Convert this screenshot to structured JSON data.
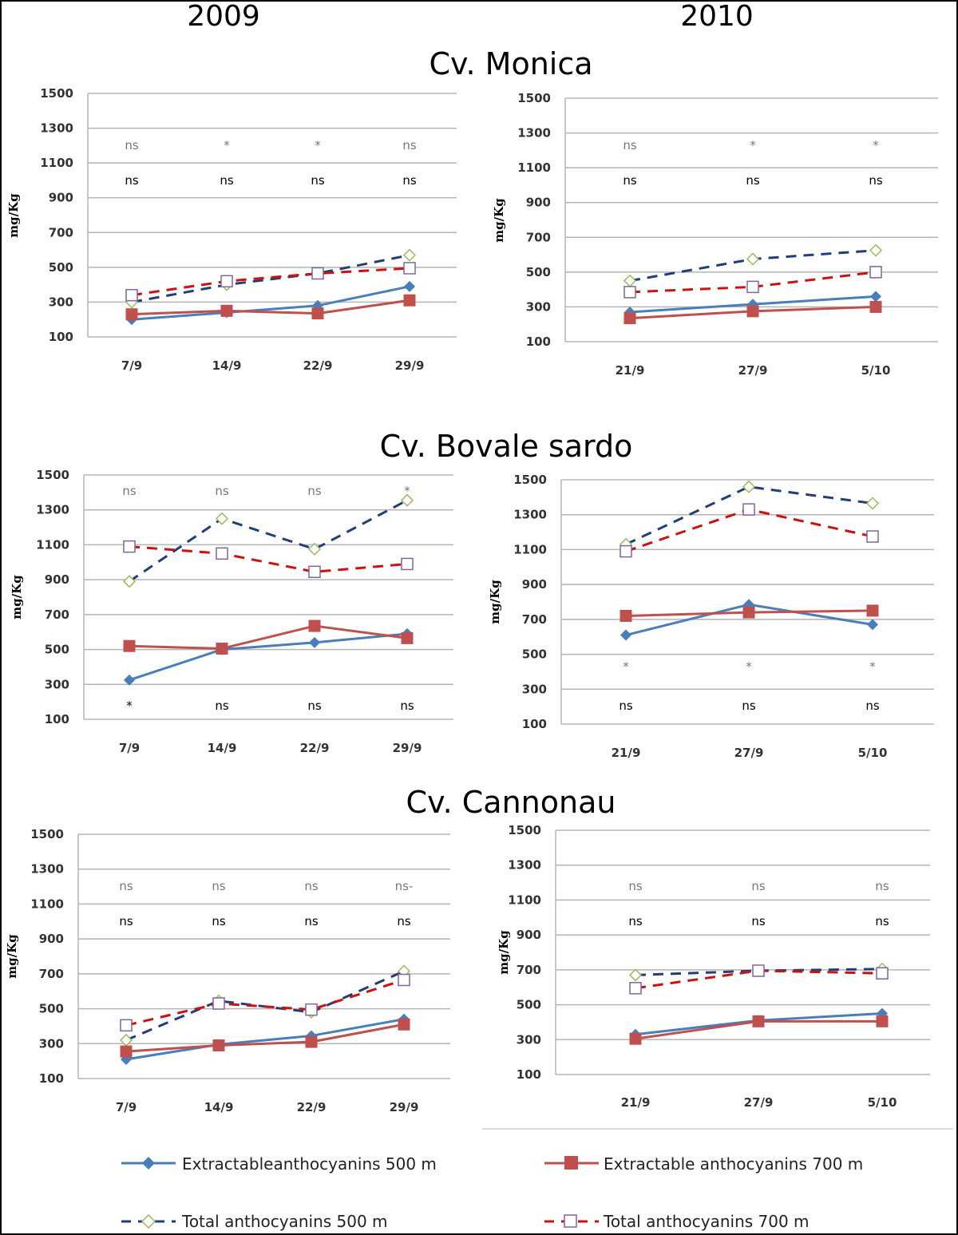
{
  "years": [
    "2009",
    "2010"
  ],
  "cultivars": [
    "Cv. Monica",
    "Cv. Bovale sardo",
    "Cv. Cannonau"
  ],
  "legend": [
    {
      "key": "ext500",
      "label": "Extractableanthocyanins 500 m"
    },
    {
      "key": "ext700",
      "label": "Extractable anthocyanins 700 m"
    },
    {
      "key": "tot500",
      "label": "Total anthocyanins  500 m"
    },
    {
      "key": "tot700",
      "label": "Total anthocyanins  700 m"
    }
  ],
  "series_styles": {
    "ext500": {
      "color": "#4a7ebb",
      "marker": "diamond",
      "dashed": false
    },
    "ext700": {
      "color": "#c0504d",
      "marker": "square",
      "dashed": false
    },
    "tot500": {
      "color": "#1f3f7a",
      "marker": "open-diamond",
      "marker_color": "#9bbb59",
      "dashed": true
    },
    "tot700": {
      "color": "#cc1111",
      "marker": "open-square",
      "marker_color": "#8064a2",
      "dashed": true
    }
  },
  "chart_data": [
    {
      "type": "line",
      "cultivar": "Cv. Monica",
      "year": "2009",
      "ylabel": "mg/Kg",
      "ylim": [
        100,
        1500
      ],
      "yticks": [
        100,
        300,
        500,
        700,
        900,
        1100,
        1300,
        1500
      ],
      "categories": [
        "7/9",
        "14/9",
        "22/9",
        "29/9"
      ],
      "series": [
        {
          "key": "ext500",
          "name": "Extractableanthocyanins 500 m",
          "values": [
            200,
            240,
            280,
            390
          ]
        },
        {
          "key": "ext700",
          "name": "Extractable anthocyanins 700 m",
          "values": [
            230,
            250,
            235,
            310
          ]
        },
        {
          "key": "tot500",
          "name": "Total anthocyanins  500 m",
          "values": [
            300,
            400,
            465,
            570
          ]
        },
        {
          "key": "tot700",
          "name": "Total anthocyanins  700 m",
          "values": [
            340,
            420,
            465,
            495
          ]
        }
      ],
      "sig_rows": [
        {
          "row": "upper",
          "light": true,
          "labels": [
            "ns",
            "*",
            "*",
            "ns"
          ]
        },
        {
          "row": "lower",
          "light": false,
          "labels": [
            "ns",
            "ns",
            "ns",
            "ns"
          ]
        }
      ]
    },
    {
      "type": "line",
      "cultivar": "Cv. Monica",
      "year": "2010",
      "ylabel": "mg/Kg",
      "ylim": [
        100,
        1500
      ],
      "yticks": [
        100,
        300,
        500,
        700,
        900,
        1100,
        1300,
        1500
      ],
      "categories": [
        "21/9",
        "27/9",
        "5/10"
      ],
      "series": [
        {
          "key": "ext500",
          "name": "Extractableanthocyanins 500 m",
          "values": [
            270,
            315,
            360
          ]
        },
        {
          "key": "ext700",
          "name": "Extractable anthocyanins 700 m",
          "values": [
            235,
            275,
            300
          ]
        },
        {
          "key": "tot500",
          "name": "Total anthocyanins  500 m",
          "values": [
            450,
            575,
            625
          ]
        },
        {
          "key": "tot700",
          "name": "Total anthocyanins  700 m",
          "values": [
            385,
            415,
            500
          ]
        }
      ],
      "sig_rows": [
        {
          "row": "upper",
          "light": true,
          "labels": [
            "ns",
            "*",
            "*"
          ]
        },
        {
          "row": "lower",
          "light": false,
          "labels": [
            "ns",
            "ns",
            "ns"
          ]
        }
      ]
    },
    {
      "type": "line",
      "cultivar": "Cv. Bovale sardo",
      "year": "2009",
      "ylabel": "mg/Kg",
      "ylim": [
        100,
        1500
      ],
      "yticks": [
        100,
        300,
        500,
        700,
        900,
        1100,
        1300,
        1500
      ],
      "categories": [
        "7/9",
        "14/9",
        "22/9",
        "29/9"
      ],
      "series": [
        {
          "key": "ext500",
          "name": "Extractableanthocyanins 500 m",
          "values": [
            325,
            500,
            540,
            590
          ]
        },
        {
          "key": "ext700",
          "name": "Extractable anthocyanins 700 m",
          "values": [
            520,
            505,
            635,
            565
          ]
        },
        {
          "key": "tot500",
          "name": "Total anthocyanins  500 m",
          "values": [
            890,
            1250,
            1075,
            1355
          ]
        },
        {
          "key": "tot700",
          "name": "Total anthocyanins  700 m",
          "values": [
            1090,
            1050,
            945,
            990
          ]
        }
      ],
      "sig_rows": [
        {
          "row": "upper",
          "light": true,
          "labels": [
            "ns",
            "ns",
            "ns",
            "*"
          ]
        },
        {
          "row": "bottom",
          "light": false,
          "labels": [
            "*",
            "ns",
            "ns",
            "ns"
          ]
        }
      ]
    },
    {
      "type": "line",
      "cultivar": "Cv. Bovale sardo",
      "year": "2010",
      "ylabel": "mg/Kg",
      "ylim": [
        100,
        1500
      ],
      "yticks": [
        100,
        300,
        500,
        700,
        900,
        1100,
        1300,
        1500
      ],
      "categories": [
        "21/9",
        "27/9",
        "5/10"
      ],
      "series": [
        {
          "key": "ext500",
          "name": "Extractableanthocyanins 500 m",
          "values": [
            610,
            785,
            670
          ]
        },
        {
          "key": "ext700",
          "name": "Extractable anthocyanins 700 m",
          "values": [
            720,
            740,
            750
          ]
        },
        {
          "key": "tot500",
          "name": "Total anthocyanins  500 m",
          "values": [
            1130,
            1460,
            1365
          ]
        },
        {
          "key": "tot700",
          "name": "Total anthocyanins  700 m",
          "values": [
            1090,
            1330,
            1175
          ]
        }
      ],
      "sig_rows": [
        {
          "row": "mid",
          "light": true,
          "labels": [
            "*",
            "*",
            "*"
          ]
        },
        {
          "row": "bottom",
          "light": false,
          "labels": [
            "ns",
            "ns",
            "ns"
          ]
        }
      ]
    },
    {
      "type": "line",
      "cultivar": "Cv. Cannonau",
      "year": "2009",
      "ylabel": "mg/Kg",
      "ylim": [
        100,
        1500
      ],
      "yticks": [
        100,
        300,
        500,
        700,
        900,
        1100,
        1300,
        1500
      ],
      "categories": [
        "7/9",
        "14/9",
        "22/9",
        "29/9"
      ],
      "series": [
        {
          "key": "ext500",
          "name": "Extractableanthocyanins 500 m",
          "values": [
            210,
            295,
            345,
            440
          ]
        },
        {
          "key": "ext700",
          "name": "Extractable anthocyanins 700 m",
          "values": [
            255,
            290,
            310,
            410
          ]
        },
        {
          "key": "tot500",
          "name": "Total anthocyanins  500 m",
          "values": [
            320,
            545,
            480,
            715
          ]
        },
        {
          "key": "tot700",
          "name": "Total anthocyanins  700 m",
          "values": [
            405,
            530,
            495,
            665
          ]
        }
      ],
      "sig_rows": [
        {
          "row": "upper",
          "light": true,
          "labels": [
            "ns",
            "ns",
            "ns",
            "ns-"
          ]
        },
        {
          "row": "lower",
          "light": false,
          "labels": [
            "ns",
            "ns",
            "ns",
            "ns"
          ]
        }
      ]
    },
    {
      "type": "line",
      "cultivar": "Cv. Cannonau",
      "year": "2010",
      "ylabel": "mg/Kg",
      "ylim": [
        100,
        1500
      ],
      "yticks": [
        100,
        300,
        500,
        700,
        900,
        1100,
        1300,
        1500
      ],
      "categories": [
        "21/9",
        "27/9",
        "5/10"
      ],
      "series": [
        {
          "key": "ext500",
          "name": "Extractableanthocyanins 500 m",
          "values": [
            330,
            410,
            450
          ]
        },
        {
          "key": "ext700",
          "name": "Extractable anthocyanins 700 m",
          "values": [
            305,
            405,
            405
          ]
        },
        {
          "key": "tot500",
          "name": "Total anthocyanins  500 m",
          "values": [
            670,
            695,
            705
          ]
        },
        {
          "key": "tot700",
          "name": "Total anthocyanins  700 m",
          "values": [
            595,
            695,
            680
          ]
        }
      ],
      "sig_rows": [
        {
          "row": "upper",
          "light": true,
          "labels": [
            "ns",
            "ns",
            "ns"
          ]
        },
        {
          "row": "lower",
          "light": false,
          "labels": [
            "ns",
            "ns",
            "ns"
          ]
        }
      ]
    }
  ]
}
